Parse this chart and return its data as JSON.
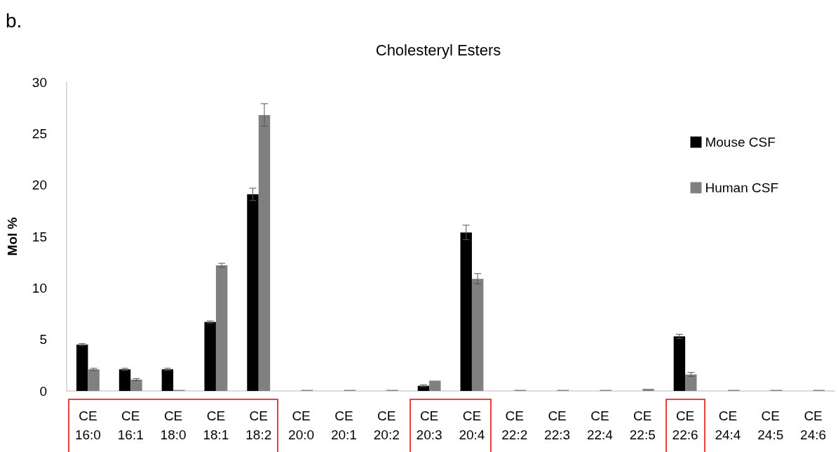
{
  "chart_data": {
    "type": "bar",
    "title": "Cholesteryl Esters",
    "ylabel": "Mol %",
    "annotations": [
      "b."
    ],
    "categories": [
      "CE 16:0",
      "CE 16:1",
      "CE 18:0",
      "CE 18:1",
      "CE 18:2",
      "CE 20:0",
      "CE 20:1",
      "CE 20:2",
      "CE 20:3",
      "CE 20:4",
      "CE 22:2",
      "CE 22:3",
      "CE 22:4",
      "CE 22:5",
      "CE 22:6",
      "CE 24:4",
      "CE 24:5",
      "CE 24:6"
    ],
    "series": [
      {
        "name": "Mouse CSF",
        "color": "#000000",
        "values": [
          4.5,
          2.1,
          2.1,
          6.7,
          19.1,
          0,
          0,
          0,
          0.5,
          15.4,
          0,
          0,
          0,
          0,
          5.3,
          0,
          0,
          0
        ],
        "errors": [
          0.1,
          0.1,
          0.1,
          0.1,
          0.6,
          null,
          null,
          null,
          0.1,
          0.7,
          null,
          null,
          null,
          null,
          0.2,
          null,
          null,
          null
        ]
      },
      {
        "name": "Human CSF",
        "color": "#808080",
        "values": [
          2.1,
          1.1,
          0.1,
          12.2,
          26.8,
          0.1,
          0.1,
          0.1,
          1.0,
          10.9,
          0.1,
          0.1,
          0.1,
          0.2,
          1.6,
          0.1,
          0.1,
          0.1
        ],
        "errors": [
          0.1,
          0.1,
          null,
          0.2,
          1.1,
          null,
          null,
          null,
          null,
          0.5,
          null,
          null,
          null,
          null,
          0.2,
          null,
          null,
          null
        ]
      }
    ],
    "ylim": [
      0,
      30
    ],
    "yticks": [
      0,
      5,
      10,
      15,
      20,
      25,
      30
    ],
    "grid": false,
    "legend": "top right"
  }
}
